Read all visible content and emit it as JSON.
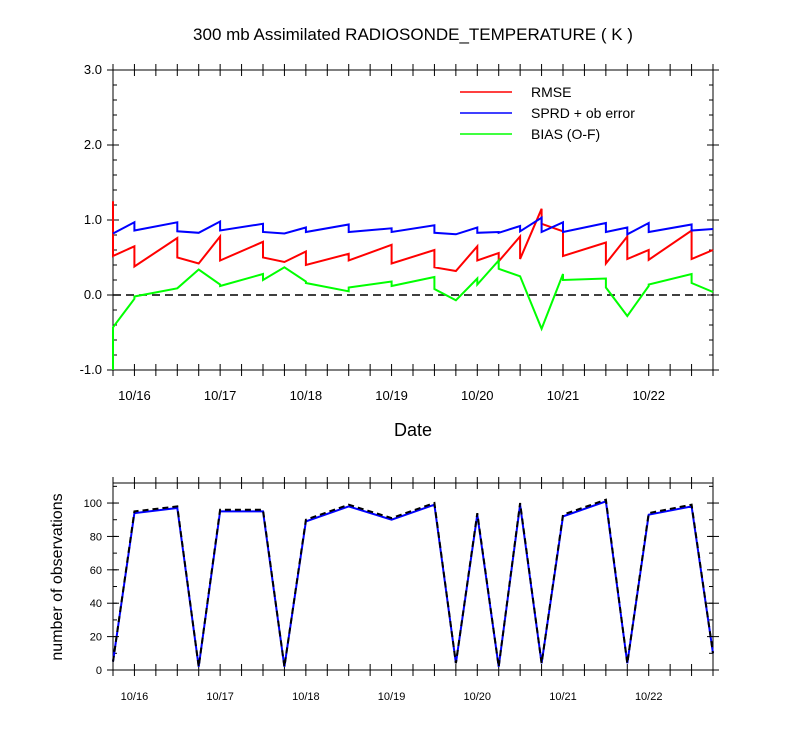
{
  "chart_data": [
    {
      "type": "line",
      "title": "300 mb Assimilated RADIOSONDE_TEMPERATURE ( K )",
      "xlabel": "Date",
      "ylabel": "",
      "xlim": [
        0,
        7.0
      ],
      "ylim": [
        -1.0,
        3.0
      ],
      "yticks": [
        -1.0,
        0.0,
        1.0,
        2.0,
        3.0
      ],
      "ytick_labels": [
        "-1.0",
        "0.0",
        "1.0",
        "2.0",
        "3.0"
      ],
      "xtick_labels": [
        "10/16",
        "10/17",
        "10/18",
        "10/19",
        "10/20",
        "10/21",
        "10/22"
      ],
      "xtick_positions": [
        0.25,
        1.25,
        2.25,
        3.25,
        4.25,
        5.25,
        6.25
      ],
      "legend": "top-right",
      "reference_line": 0.0,
      "series": [
        {
          "name": "RMSE",
          "color": "#ff0000",
          "points": [
            [
              0,
              1.25
            ],
            [
              0,
              0.52
            ],
            [
              0.25,
              0.65
            ],
            [
              0.25,
              0.38
            ],
            [
              0.75,
              0.76
            ],
            [
              0.75,
              0.5
            ],
            [
              1.0,
              0.42
            ],
            [
              1.25,
              0.78
            ],
            [
              1.25,
              0.46
            ],
            [
              1.75,
              0.71
            ],
            [
              1.75,
              0.5
            ],
            [
              2.0,
              0.44
            ],
            [
              2.25,
              0.58
            ],
            [
              2.25,
              0.4
            ],
            [
              2.75,
              0.55
            ],
            [
              2.75,
              0.46
            ],
            [
              3.25,
              0.67
            ],
            [
              3.25,
              0.42
            ],
            [
              3.75,
              0.6
            ],
            [
              3.75,
              0.37
            ],
            [
              4.0,
              0.32
            ],
            [
              4.25,
              0.65
            ],
            [
              4.25,
              0.46
            ],
            [
              4.5,
              0.56
            ],
            [
              4.5,
              0.45
            ],
            [
              4.75,
              0.78
            ],
            [
              4.75,
              0.48
            ],
            [
              5.0,
              1.15
            ],
            [
              5.0,
              0.95
            ],
            [
              5.25,
              0.85
            ],
            [
              5.25,
              0.52
            ],
            [
              5.75,
              0.7
            ],
            [
              5.75,
              0.42
            ],
            [
              6.0,
              0.78
            ],
            [
              6.0,
              0.48
            ],
            [
              6.25,
              0.6
            ],
            [
              6.25,
              0.47
            ],
            [
              6.75,
              0.86
            ],
            [
              6.75,
              0.48
            ],
            [
              7.0,
              0.6
            ]
          ]
        },
        {
          "name": "SPRD + ob error",
          "color": "#0000ff",
          "points": [
            [
              0,
              0.82
            ],
            [
              0.25,
              0.97
            ],
            [
              0.25,
              0.86
            ],
            [
              0.75,
              0.97
            ],
            [
              0.75,
              0.85
            ],
            [
              1.0,
              0.83
            ],
            [
              1.25,
              0.98
            ],
            [
              1.25,
              0.86
            ],
            [
              1.75,
              0.95
            ],
            [
              1.75,
              0.84
            ],
            [
              2.0,
              0.82
            ],
            [
              2.25,
              0.9
            ],
            [
              2.25,
              0.84
            ],
            [
              2.75,
              0.94
            ],
            [
              2.75,
              0.84
            ],
            [
              3.25,
              0.89
            ],
            [
              3.25,
              0.84
            ],
            [
              3.75,
              0.93
            ],
            [
              3.75,
              0.83
            ],
            [
              4.0,
              0.81
            ],
            [
              4.25,
              0.9
            ],
            [
              4.25,
              0.83
            ],
            [
              4.5,
              0.84
            ],
            [
              4.5,
              0.83
            ],
            [
              4.75,
              0.92
            ],
            [
              4.75,
              0.85
            ],
            [
              5.0,
              1.03
            ],
            [
              5.0,
              0.84
            ],
            [
              5.25,
              0.97
            ],
            [
              5.25,
              0.84
            ],
            [
              5.75,
              0.96
            ],
            [
              5.75,
              0.84
            ],
            [
              6.0,
              0.9
            ],
            [
              6.0,
              0.81
            ],
            [
              6.25,
              0.96
            ],
            [
              6.25,
              0.84
            ],
            [
              6.75,
              0.94
            ],
            [
              6.75,
              0.86
            ],
            [
              7.0,
              0.88
            ]
          ]
        },
        {
          "name": "BIAS (O-F)",
          "color": "#00ff00",
          "points": [
            [
              0,
              -1.0
            ],
            [
              0,
              -0.43
            ],
            [
              0.25,
              -0.05
            ],
            [
              0.25,
              -0.02
            ],
            [
              0.75,
              0.09
            ],
            [
              1.0,
              0.34
            ],
            [
              1.25,
              0.14
            ],
            [
              1.25,
              0.12
            ],
            [
              1.75,
              0.28
            ],
            [
              1.75,
              0.2
            ],
            [
              2.0,
              0.37
            ],
            [
              2.25,
              0.18
            ],
            [
              2.25,
              0.16
            ],
            [
              2.75,
              0.05
            ],
            [
              2.75,
              0.1
            ],
            [
              3.25,
              0.18
            ],
            [
              3.25,
              0.12
            ],
            [
              3.75,
              0.24
            ],
            [
              3.75,
              0.08
            ],
            [
              4.0,
              -0.07
            ],
            [
              4.25,
              0.22
            ],
            [
              4.25,
              0.14
            ],
            [
              4.5,
              0.46
            ],
            [
              4.5,
              0.35
            ],
            [
              4.75,
              0.25
            ],
            [
              5.0,
              -0.45
            ],
            [
              5.25,
              0.28
            ],
            [
              5.25,
              0.2
            ],
            [
              5.75,
              0.22
            ],
            [
              5.75,
              0.1
            ],
            [
              6.0,
              -0.28
            ],
            [
              6.25,
              0.12
            ],
            [
              6.25,
              0.14
            ],
            [
              6.75,
              0.28
            ],
            [
              6.75,
              0.16
            ],
            [
              7.0,
              0.04
            ]
          ]
        }
      ]
    },
    {
      "type": "line",
      "title": "",
      "xlabel": "",
      "ylabel": "number of observations",
      "xlim": [
        0,
        7.0
      ],
      "ylim": [
        0,
        112
      ],
      "yticks": [
        0,
        20,
        40,
        60,
        80,
        100
      ],
      "ytick_labels": [
        "0",
        "20",
        "40",
        "60",
        "80",
        "100"
      ],
      "xtick_labels": [
        "10/16",
        "10/17",
        "10/18",
        "10/19",
        "10/20",
        "10/21",
        "10/22"
      ],
      "xtick_positions": [
        0.25,
        1.25,
        2.25,
        3.25,
        4.25,
        5.25,
        6.25
      ],
      "series": [
        {
          "style": "solid",
          "color": "#0000ff",
          "points": [
            [
              0,
              5
            ],
            [
              0.25,
              94
            ],
            [
              0.75,
              97
            ],
            [
              1.0,
              2
            ],
            [
              1.25,
              95
            ],
            [
              1.75,
              95
            ],
            [
              2.0,
              2
            ],
            [
              2.25,
              89
            ],
            [
              2.75,
              98
            ],
            [
              3.25,
              90
            ],
            [
              3.75,
              99
            ],
            [
              4.0,
              4
            ],
            [
              4.25,
              93
            ],
            [
              4.5,
              2
            ],
            [
              4.75,
              99
            ],
            [
              5.0,
              4
            ],
            [
              5.25,
              92
            ],
            [
              5.75,
              101
            ],
            [
              6.0,
              4
            ],
            [
              6.25,
              93
            ],
            [
              6.75,
              98
            ],
            [
              7.0,
              10
            ]
          ]
        },
        {
          "style": "dashed",
          "color": "#000000",
          "points": [
            [
              0,
              5
            ],
            [
              0.25,
              95
            ],
            [
              0.75,
              98
            ],
            [
              1.0,
              2
            ],
            [
              1.25,
              96
            ],
            [
              1.75,
              96
            ],
            [
              2.0,
              2
            ],
            [
              2.25,
              90
            ],
            [
              2.75,
              99
            ],
            [
              3.25,
              91
            ],
            [
              3.75,
              100
            ],
            [
              4.0,
              4
            ],
            [
              4.25,
              94
            ],
            [
              4.5,
              2
            ],
            [
              4.75,
              100
            ],
            [
              5.0,
              4
            ],
            [
              5.25,
              93
            ],
            [
              5.75,
              102
            ],
            [
              6.0,
              4
            ],
            [
              6.25,
              94
            ],
            [
              6.75,
              99
            ],
            [
              7.0,
              10
            ]
          ]
        }
      ]
    }
  ]
}
